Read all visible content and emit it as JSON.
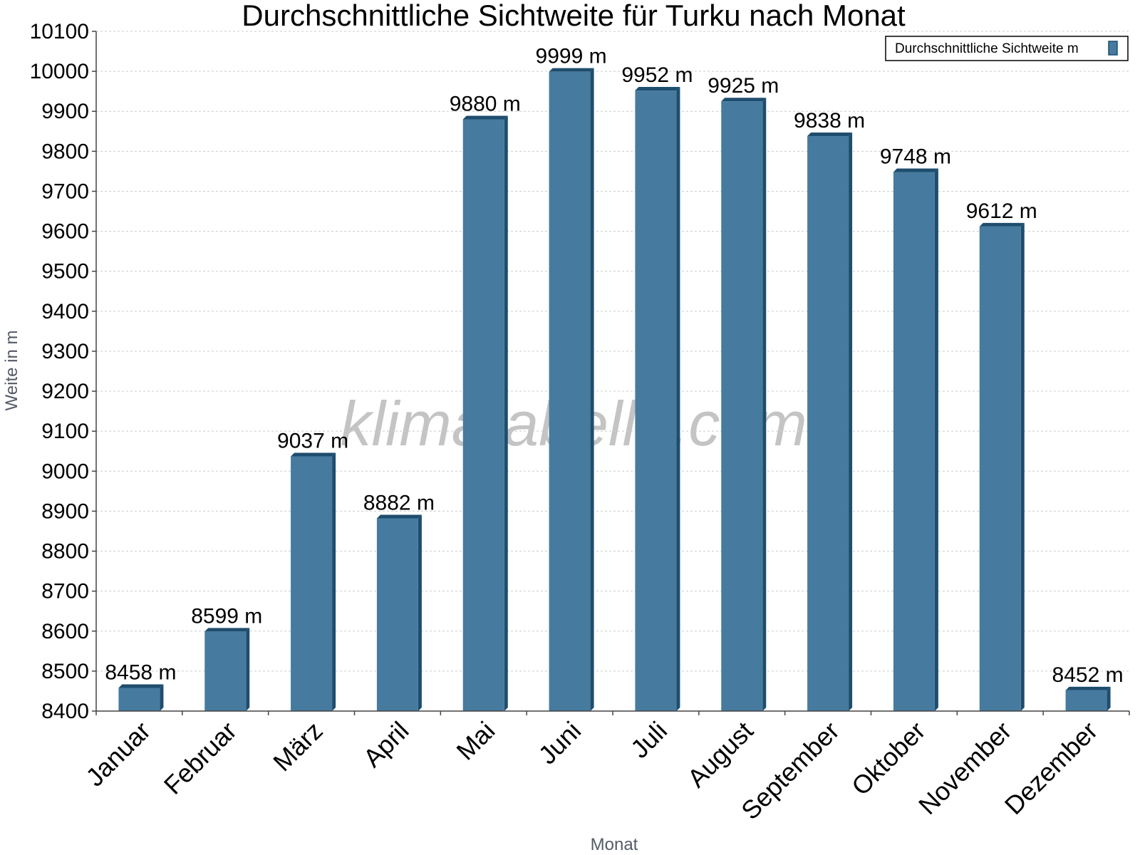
{
  "chart_data": {
    "type": "bar",
    "title": "Durchschnittliche Sichtweite für Turku nach Monat",
    "xlabel": "Monat",
    "ylabel": "Weite in m",
    "categories": [
      "Januar",
      "Februar",
      "März",
      "April",
      "Mai",
      "Juni",
      "Juli",
      "August",
      "September",
      "Oktober",
      "November",
      "Dezember"
    ],
    "series": [
      {
        "name": "Durchschnittliche Sichtweite m",
        "values": [
          8458,
          8599,
          9037,
          8882,
          9880,
          9999,
          9952,
          9925,
          9838,
          9748,
          9612,
          8452
        ],
        "value_labels": [
          "8458 m",
          "8599 m",
          "9037 m",
          "8882 m",
          "9880 m",
          "9999 m",
          "9952 m",
          "9925 m",
          "9838 m",
          "9748 m",
          "9612 m",
          "8452 m"
        ]
      }
    ],
    "ylim": [
      8400,
      10100
    ],
    "yticks": [
      "8400",
      "8500",
      "8600",
      "8700",
      "8800",
      "8900",
      "9000",
      "9100",
      "9200",
      "9300",
      "9400",
      "9500",
      "9600",
      "9700",
      "9800",
      "9900",
      "10000",
      "10100"
    ],
    "grid": true,
    "legend_position": "top-right",
    "watermark": "klimatabelle.com",
    "colors": {
      "bar": "#467b9f",
      "bar_side": "#1e4d6e",
      "grid": "#cccccc",
      "axis": "#444444"
    }
  }
}
